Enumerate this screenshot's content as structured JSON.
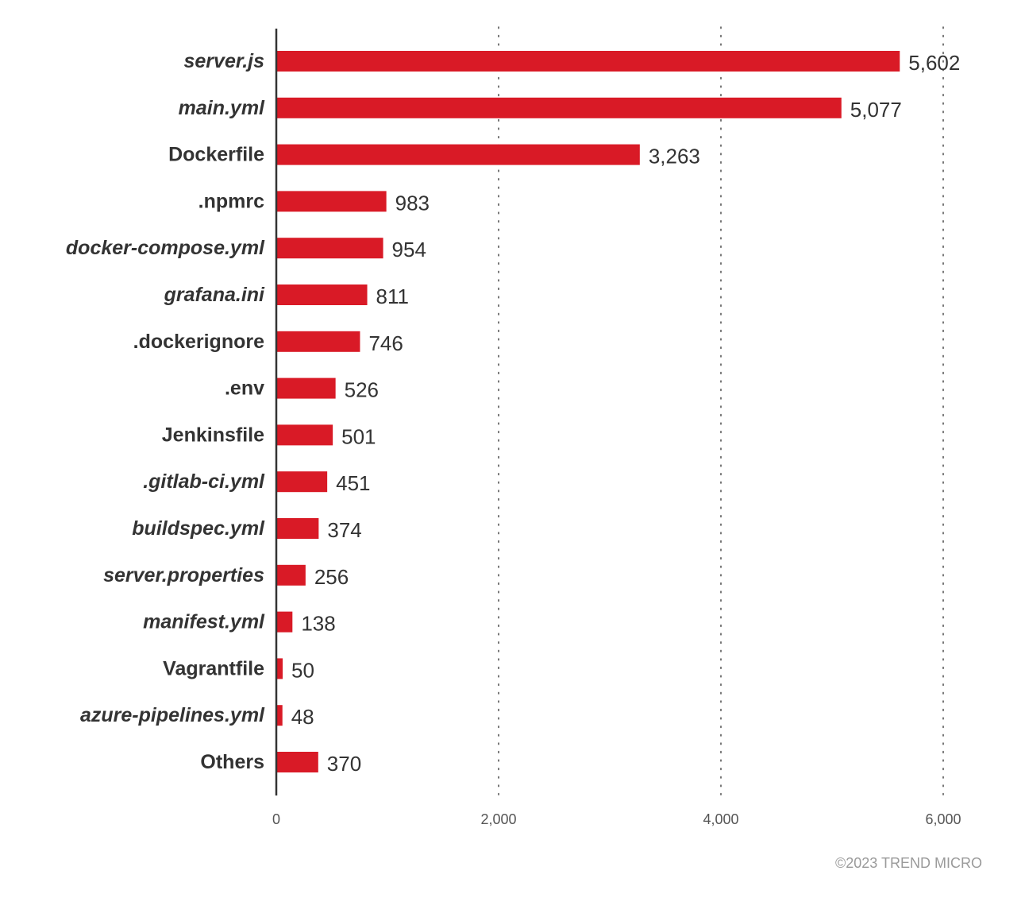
{
  "chart_data": {
    "type": "bar",
    "orientation": "horizontal",
    "categories": [
      {
        "label": "server.js",
        "italic": true
      },
      {
        "label": "main.yml",
        "italic": true
      },
      {
        "label": "Dockerfile",
        "italic": false
      },
      {
        "label": ".npmrc",
        "italic": false
      },
      {
        "label": "docker-compose.yml",
        "italic": true
      },
      {
        "label": "grafana.ini",
        "italic": true
      },
      {
        "label": ".dockerignore",
        "italic": false
      },
      {
        "label": ".env",
        "italic": false
      },
      {
        "label": "Jenkinsfile",
        "italic": false
      },
      {
        "label": ".gitlab-ci.yml",
        "italic": true
      },
      {
        "label": "buildspec.yml",
        "italic": true
      },
      {
        "label": "server.properties",
        "italic": true
      },
      {
        "label": "manifest.yml",
        "italic": true
      },
      {
        "label": "Vagrantfile",
        "italic": false
      },
      {
        "label": "azure-pipelines.yml",
        "italic": true
      },
      {
        "label": "Others",
        "italic": false
      }
    ],
    "values": [
      5602,
      5077,
      3263,
      983,
      954,
      811,
      746,
      526,
      501,
      451,
      374,
      256,
      138,
      50,
      48,
      370
    ],
    "value_labels": [
      "5,602",
      "5,077",
      "3,263",
      "983",
      "954",
      "811",
      "746",
      "526",
      "501",
      "451",
      "374",
      "256",
      "138",
      "50",
      "48",
      "370"
    ],
    "xlim": [
      0,
      6000
    ],
    "xticks": [
      0,
      2000,
      4000,
      6000
    ],
    "xtick_labels": [
      "0",
      "2,000",
      "4,000",
      "6,000"
    ],
    "grid": "vertical dotted",
    "bar_color": "#d91a26",
    "axis_color": "#333333",
    "credit": "©2023 TREND MICRO"
  }
}
